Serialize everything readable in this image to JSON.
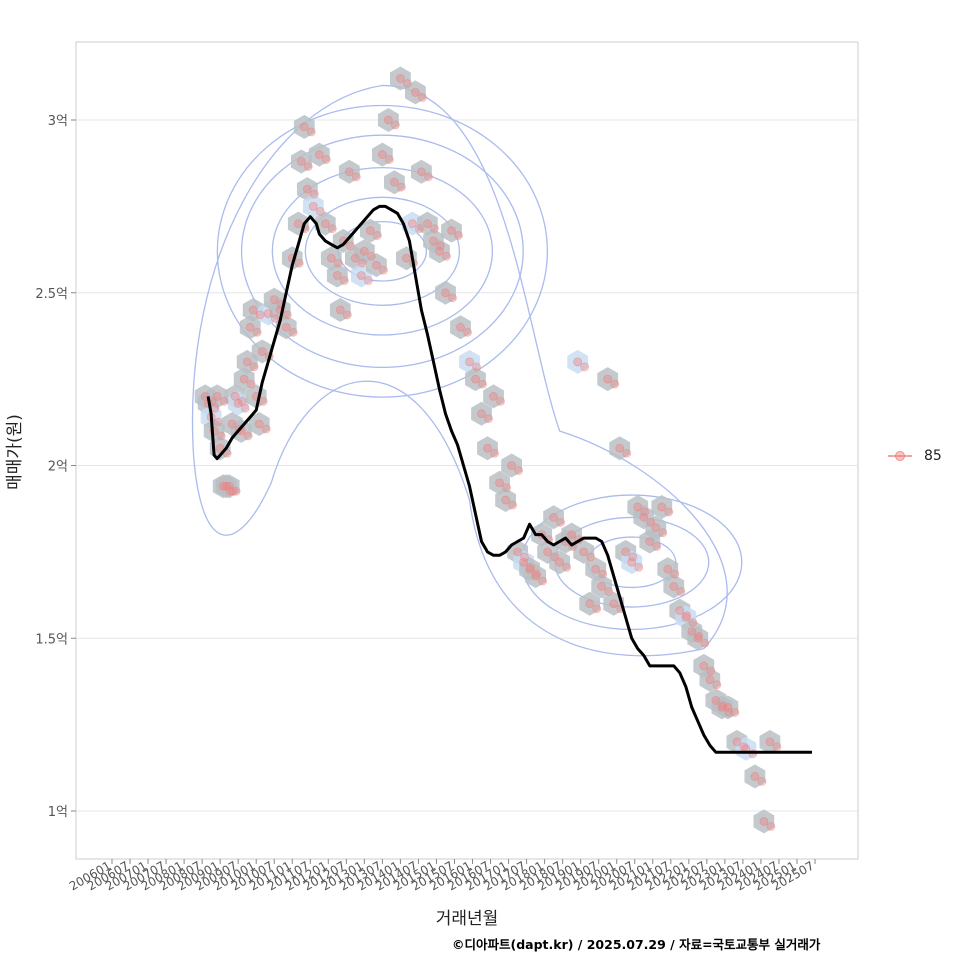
{
  "chart_data": {
    "type": "line",
    "title": "",
    "xlabel": "거래년월",
    "ylabel": "매매가(원)",
    "y_unit": "억",
    "ylim": [
      0.86,
      3.22
    ],
    "xlim": [
      "2006-01",
      "2025-07"
    ],
    "y_ticks": [
      {
        "value": 1.0,
        "label": "1억"
      },
      {
        "value": 1.5,
        "label": "1.5억"
      },
      {
        "value": 2.0,
        "label": "2억"
      },
      {
        "value": 2.5,
        "label": "2.5억"
      },
      {
        "value": 3.0,
        "label": "3억"
      }
    ],
    "x_ticks": [
      "200601",
      "200607",
      "200701",
      "200707",
      "200801",
      "200807",
      "200901",
      "200907",
      "201001",
      "201007",
      "201101",
      "201107",
      "201201",
      "201207",
      "201301",
      "201307",
      "201401",
      "201407",
      "201501",
      "201507",
      "201601",
      "201607",
      "201701",
      "201707",
      "201801",
      "201807",
      "201901",
      "201907",
      "202001",
      "202007",
      "202101",
      "202107",
      "202201",
      "202207",
      "202301",
      "202307",
      "202401",
      "202407",
      "202501",
      "202507"
    ],
    "grid": true,
    "legend": {
      "position": "right",
      "entries": [
        "85"
      ]
    },
    "colors": {
      "scatter": "#f08080",
      "line": "#000000",
      "hex": "#b9bfc4",
      "hex_light": "#c8ddf2",
      "contour": "#aabbee",
      "grid": "#e5e5e5"
    },
    "series": [
      {
        "name": "85",
        "kind": "moving-average-line",
        "x": [
          "2008-09",
          "2008-10",
          "2008-11",
          "2008-12",
          "2009-01",
          "2009-03",
          "2009-05",
          "2009-07",
          "2009-09",
          "2009-11",
          "2010-01",
          "2010-03",
          "2010-05",
          "2010-07",
          "2010-09",
          "2010-11",
          "2011-01",
          "2011-03",
          "2011-05",
          "2011-07",
          "2011-09",
          "2011-10",
          "2011-12",
          "2012-02",
          "2012-04",
          "2012-06",
          "2012-08",
          "2012-10",
          "2012-12",
          "2013-02",
          "2013-04",
          "2013-06",
          "2013-08",
          "2013-10",
          "2013-12",
          "2014-02",
          "2014-04",
          "2014-06",
          "2014-08",
          "2014-10",
          "2014-12",
          "2015-02",
          "2015-04",
          "2015-06",
          "2015-08",
          "2015-10",
          "2015-12",
          "2016-02",
          "2016-04",
          "2016-06",
          "2016-08",
          "2016-10",
          "2016-12",
          "2017-02",
          "2017-04",
          "2017-06",
          "2017-08",
          "2017-10",
          "2017-12",
          "2018-02",
          "2018-04",
          "2018-06",
          "2018-08",
          "2018-10",
          "2018-12",
          "2019-02",
          "2019-04",
          "2019-06",
          "2019-08",
          "2019-10",
          "2019-12",
          "2020-02",
          "2020-04",
          "2020-06",
          "2020-08",
          "2020-10",
          "2020-12",
          "2021-02",
          "2021-04",
          "2021-06",
          "2021-08",
          "2021-10",
          "2021-12",
          "2022-02",
          "2022-04",
          "2022-06",
          "2022-08",
          "2022-10",
          "2022-12",
          "2023-02",
          "2023-04",
          "2023-06",
          "2023-08",
          "2023-10",
          "2023-12",
          "2024-02",
          "2024-04",
          "2024-06",
          "2024-08",
          "2024-10",
          "2024-12",
          "2025-02",
          "2025-04",
          "2025-06"
        ],
        "y": [
          2.2,
          2.15,
          2.03,
          2.02,
          2.03,
          2.05,
          2.08,
          2.1,
          2.12,
          2.14,
          2.16,
          2.24,
          2.3,
          2.36,
          2.42,
          2.5,
          2.58,
          2.64,
          2.7,
          2.72,
          2.7,
          2.67,
          2.65,
          2.64,
          2.63,
          2.64,
          2.66,
          2.68,
          2.7,
          2.72,
          2.74,
          2.75,
          2.75,
          2.74,
          2.73,
          2.7,
          2.65,
          2.55,
          2.45,
          2.38,
          2.3,
          2.22,
          2.15,
          2.1,
          2.06,
          2.0,
          1.94,
          1.86,
          1.78,
          1.75,
          1.74,
          1.74,
          1.75,
          1.77,
          1.78,
          1.79,
          1.83,
          1.8,
          1.8,
          1.78,
          1.77,
          1.78,
          1.79,
          1.77,
          1.78,
          1.79,
          1.79,
          1.79,
          1.78,
          1.74,
          1.68,
          1.62,
          1.56,
          1.5,
          1.47,
          1.45,
          1.42,
          1.42,
          1.42,
          1.42,
          1.42,
          1.4,
          1.36,
          1.3,
          1.26,
          1.22,
          1.19,
          1.17,
          1.17,
          1.17,
          1.17,
          1.17,
          1.17,
          1.17,
          1.17,
          1.17,
          1.17,
          1.17,
          1.17,
          1.17,
          1.17,
          1.17,
          1.17,
          1.17
        ]
      },
      {
        "name": "85",
        "kind": "transactions-scatter",
        "points": [
          {
            "x": "2008-08",
            "y": 2.2
          },
          {
            "x": "2008-09",
            "y": 2.18
          },
          {
            "x": "2008-10",
            "y": 2.14
          },
          {
            "x": "2008-11",
            "y": 2.1
          },
          {
            "x": "2008-12",
            "y": 2.2
          },
          {
            "x": "2009-01",
            "y": 2.05
          },
          {
            "x": "2009-02",
            "y": 1.94
          },
          {
            "x": "2009-03",
            "y": 1.94
          },
          {
            "x": "2009-04",
            "y": 1.94
          },
          {
            "x": "2009-05",
            "y": 2.12
          },
          {
            "x": "2009-06",
            "y": 2.2
          },
          {
            "x": "2009-07",
            "y": 2.18
          },
          {
            "x": "2009-08",
            "y": 2.1
          },
          {
            "x": "2009-09",
            "y": 2.25
          },
          {
            "x": "2009-10",
            "y": 2.3
          },
          {
            "x": "2009-11",
            "y": 2.4
          },
          {
            "x": "2009-12",
            "y": 2.45
          },
          {
            "x": "2010-01",
            "y": 2.2
          },
          {
            "x": "2010-02",
            "y": 2.12
          },
          {
            "x": "2010-03",
            "y": 2.33
          },
          {
            "x": "2010-05",
            "y": 2.44
          },
          {
            "x": "2010-07",
            "y": 2.48
          },
          {
            "x": "2010-09",
            "y": 2.45
          },
          {
            "x": "2010-11",
            "y": 2.4
          },
          {
            "x": "2011-01",
            "y": 2.6
          },
          {
            "x": "2011-03",
            "y": 2.7
          },
          {
            "x": "2011-04",
            "y": 2.88
          },
          {
            "x": "2011-05",
            "y": 2.98
          },
          {
            "x": "2011-06",
            "y": 2.8
          },
          {
            "x": "2011-08",
            "y": 2.75
          },
          {
            "x": "2011-10",
            "y": 2.9
          },
          {
            "x": "2011-12",
            "y": 2.7
          },
          {
            "x": "2012-02",
            "y": 2.6
          },
          {
            "x": "2012-04",
            "y": 2.55
          },
          {
            "x": "2012-05",
            "y": 2.45
          },
          {
            "x": "2012-06",
            "y": 2.65
          },
          {
            "x": "2012-08",
            "y": 2.85
          },
          {
            "x": "2012-10",
            "y": 2.6
          },
          {
            "x": "2012-12",
            "y": 2.55
          },
          {
            "x": "2013-01",
            "y": 2.62
          },
          {
            "x": "2013-03",
            "y": 2.68
          },
          {
            "x": "2013-05",
            "y": 2.58
          },
          {
            "x": "2013-07",
            "y": 2.9
          },
          {
            "x": "2013-09",
            "y": 3.0
          },
          {
            "x": "2013-11",
            "y": 2.82
          },
          {
            "x": "2014-01",
            "y": 3.12
          },
          {
            "x": "2014-03",
            "y": 2.6
          },
          {
            "x": "2014-05",
            "y": 2.7
          },
          {
            "x": "2014-06",
            "y": 3.08
          },
          {
            "x": "2014-08",
            "y": 2.85
          },
          {
            "x": "2014-10",
            "y": 2.7
          },
          {
            "x": "2014-12",
            "y": 2.65
          },
          {
            "x": "2015-02",
            "y": 2.62
          },
          {
            "x": "2015-04",
            "y": 2.5
          },
          {
            "x": "2015-06",
            "y": 2.68
          },
          {
            "x": "2015-09",
            "y": 2.4
          },
          {
            "x": "2015-12",
            "y": 2.3
          },
          {
            "x": "2016-02",
            "y": 2.25
          },
          {
            "x": "2016-04",
            "y": 2.15
          },
          {
            "x": "2016-06",
            "y": 2.05
          },
          {
            "x": "2016-08",
            "y": 2.2
          },
          {
            "x": "2016-10",
            "y": 1.95
          },
          {
            "x": "2016-12",
            "y": 1.9
          },
          {
            "x": "2017-02",
            "y": 2.0
          },
          {
            "x": "2017-04",
            "y": 1.75
          },
          {
            "x": "2017-06",
            "y": 1.72
          },
          {
            "x": "2017-08",
            "y": 1.7
          },
          {
            "x": "2017-10",
            "y": 1.68
          },
          {
            "x": "2017-12",
            "y": 1.8
          },
          {
            "x": "2018-02",
            "y": 1.75
          },
          {
            "x": "2018-04",
            "y": 1.85
          },
          {
            "x": "2018-06",
            "y": 1.72
          },
          {
            "x": "2018-08",
            "y": 1.78
          },
          {
            "x": "2018-10",
            "y": 1.8
          },
          {
            "x": "2018-12",
            "y": 2.3
          },
          {
            "x": "2019-02",
            "y": 1.75
          },
          {
            "x": "2019-04",
            "y": 1.6
          },
          {
            "x": "2019-06",
            "y": 1.7
          },
          {
            "x": "2019-08",
            "y": 1.65
          },
          {
            "x": "2019-10",
            "y": 2.25
          },
          {
            "x": "2019-12",
            "y": 1.6
          },
          {
            "x": "2020-02",
            "y": 2.05
          },
          {
            "x": "2020-04",
            "y": 1.75
          },
          {
            "x": "2020-06",
            "y": 1.72
          },
          {
            "x": "2020-08",
            "y": 1.88
          },
          {
            "x": "2020-10",
            "y": 1.85
          },
          {
            "x": "2020-12",
            "y": 1.78
          },
          {
            "x": "2021-02",
            "y": 1.82
          },
          {
            "x": "2021-04",
            "y": 1.88
          },
          {
            "x": "2021-06",
            "y": 1.7
          },
          {
            "x": "2021-08",
            "y": 1.65
          },
          {
            "x": "2021-10",
            "y": 1.58
          },
          {
            "x": "2021-12",
            "y": 1.56
          },
          {
            "x": "2022-02",
            "y": 1.52
          },
          {
            "x": "2022-04",
            "y": 1.5
          },
          {
            "x": "2022-06",
            "y": 1.42
          },
          {
            "x": "2022-08",
            "y": 1.38
          },
          {
            "x": "2022-10",
            "y": 1.32
          },
          {
            "x": "2022-12",
            "y": 1.3
          },
          {
            "x": "2023-02",
            "y": 1.3
          },
          {
            "x": "2023-05",
            "y": 1.2
          },
          {
            "x": "2023-08",
            "y": 1.18
          },
          {
            "x": "2023-11",
            "y": 1.1
          },
          {
            "x": "2024-02",
            "y": 0.97
          },
          {
            "x": "2024-04",
            "y": 1.2
          }
        ]
      }
    ]
  },
  "footer": "©디아파트(dapt.kr) / 2025.07.29 / 자료=국토교통부 실거래가"
}
